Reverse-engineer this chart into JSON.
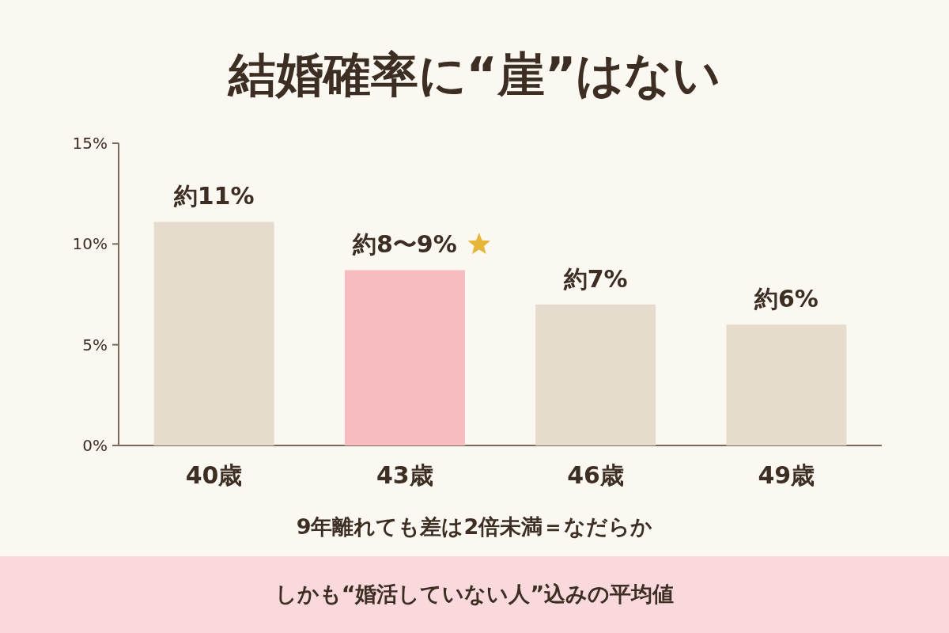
{
  "chart_data": {
    "type": "bar",
    "title": "結婚確率に“崖”はない",
    "categories": [
      "40歳",
      "43歳",
      "46歳",
      "49歳"
    ],
    "values": [
      11.1,
      8.7,
      7.0,
      6.0
    ],
    "colors": [
      "#e6dccd",
      "#f7bcc0",
      "#e6dccd",
      "#e6dccd"
    ],
    "value_labels": [
      "約11%",
      "約8〜9%",
      "約7%",
      "約6%"
    ],
    "ylim": [
      0,
      15
    ],
    "yticks": [
      {
        "value": 0,
        "label": "0%"
      },
      {
        "value": 5,
        "label": "5%"
      },
      {
        "value": 10,
        "label": "10%"
      },
      {
        "value": 15,
        "label": "15%"
      }
    ],
    "annotations": [
      "9年離れても差は2倍未満＝なだらか",
      "しかも“婚活していない人”込みの平均値"
    ]
  }
}
